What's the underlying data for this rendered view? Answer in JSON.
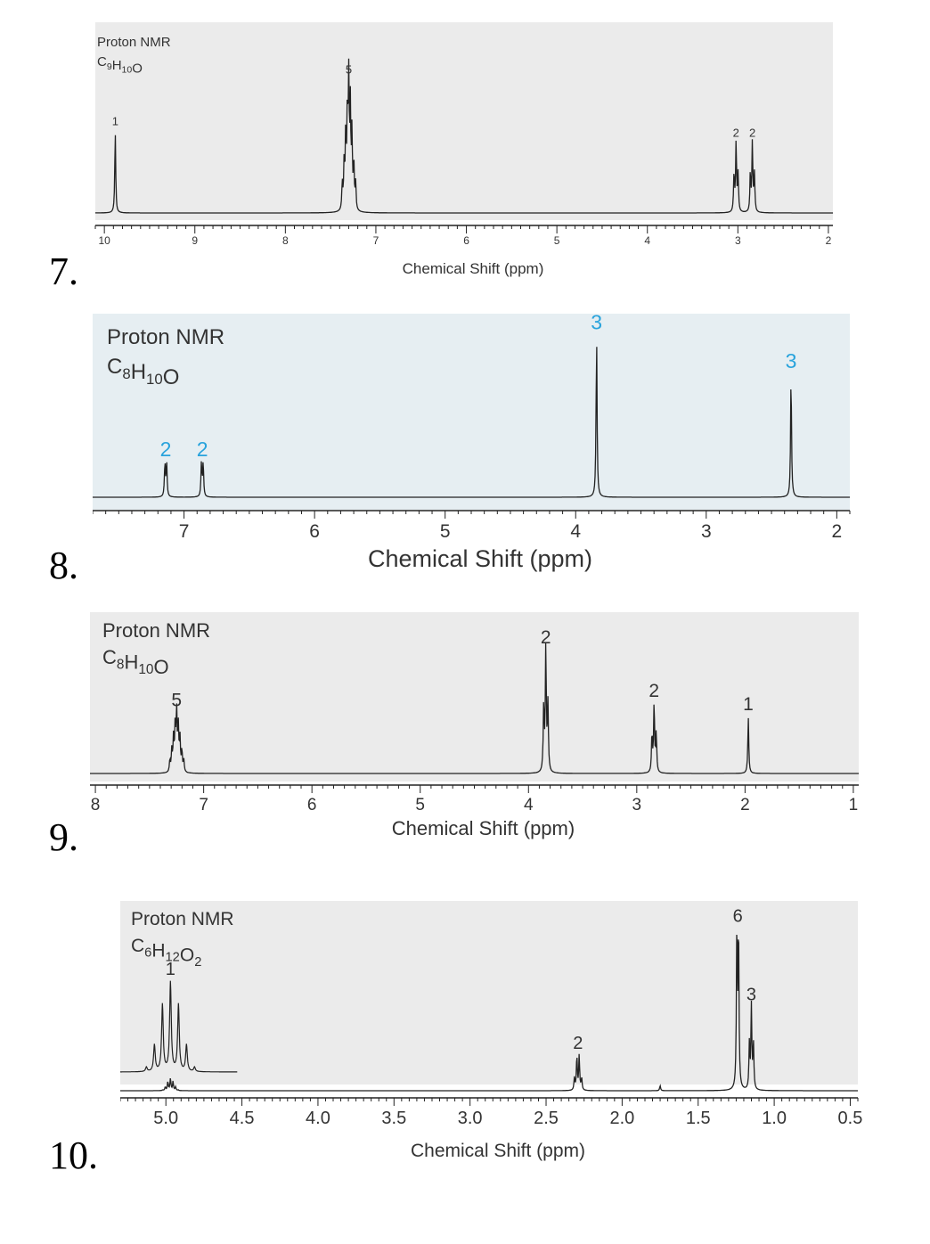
{
  "problems": [
    {
      "number": "7.",
      "chart_data": {
        "type": "line",
        "title": "Proton NMR",
        "formula": [
          {
            "t": "C"
          },
          {
            "t": "9",
            "sub": true
          },
          {
            "t": "H"
          },
          {
            "t": "10",
            "sub": true
          },
          {
            "t": "O"
          }
        ],
        "xlabel": "Chemical Shift (ppm)",
        "ylabel": "",
        "xlim": [
          10.1,
          1.95
        ],
        "ticks": [
          "10",
          "9",
          "8",
          "7",
          "6",
          "5",
          "4",
          "3",
          "2"
        ],
        "integration_color": "#333333",
        "background": "#ebebeb",
        "peaks": [
          {
            "shift": 9.88,
            "integration": "1",
            "multiplicity": "s",
            "height": 0.55
          },
          {
            "shift": 7.3,
            "integration": "5",
            "multiplicity": "m",
            "height": 0.9
          },
          {
            "shift": 3.02,
            "integration": "2",
            "multiplicity": "t",
            "height": 0.47
          },
          {
            "shift": 2.84,
            "integration": "2",
            "multiplicity": "t",
            "height": 0.47
          }
        ]
      }
    },
    {
      "number": "8.",
      "chart_data": {
        "type": "line",
        "title": "Proton NMR",
        "formula": [
          {
            "t": "C"
          },
          {
            "t": "8",
            "sub": true
          },
          {
            "t": "H"
          },
          {
            "t": "10",
            "sub": true
          },
          {
            "t": "O"
          }
        ],
        "xlabel": "Chemical Shift (ppm)",
        "ylabel": "",
        "xlim": [
          7.7,
          1.9
        ],
        "ticks": [
          "7",
          "6",
          "5",
          "4",
          "3",
          "2"
        ],
        "integration_color": "#29a3dc",
        "background": "#e6eef2",
        "peaks": [
          {
            "shift": 7.14,
            "integration": "2",
            "multiplicity": "d",
            "height": 0.2
          },
          {
            "shift": 6.86,
            "integration": "2",
            "multiplicity": "d",
            "height": 0.2
          },
          {
            "shift": 3.84,
            "integration": "3",
            "multiplicity": "s",
            "height": 0.95
          },
          {
            "shift": 2.35,
            "integration": "3",
            "multiplicity": "s",
            "height": 0.72
          }
        ]
      }
    },
    {
      "number": "9.",
      "chart_data": {
        "type": "line",
        "title": "Proton NMR",
        "formula": [
          {
            "t": "C"
          },
          {
            "t": "8",
            "sub": true
          },
          {
            "t": "H"
          },
          {
            "t": "10",
            "sub": true
          },
          {
            "t": "O"
          }
        ],
        "xlabel": "Chemical Shift (ppm)",
        "ylabel": "",
        "xlim": [
          8.05,
          0.95
        ],
        "ticks": [
          "8",
          "7",
          "6",
          "5",
          "4",
          "3",
          "2",
          "1"
        ],
        "integration_color": "#333333",
        "background": "#ebebeb",
        "peaks": [
          {
            "shift": 7.25,
            "integration": "5",
            "multiplicity": "m",
            "height": 0.45
          },
          {
            "shift": 3.84,
            "integration": "2",
            "multiplicity": "t",
            "height": 0.92
          },
          {
            "shift": 2.84,
            "integration": "2",
            "multiplicity": "t",
            "height": 0.52
          },
          {
            "shift": 1.97,
            "integration": "1",
            "multiplicity": "s",
            "height": 0.42
          }
        ]
      }
    },
    {
      "number": "10.",
      "chart_data": {
        "type": "line",
        "title": "Proton NMR",
        "formula": [
          {
            "t": "C"
          },
          {
            "t": "6",
            "sub": true
          },
          {
            "t": "H"
          },
          {
            "t": "12",
            "sub": true
          },
          {
            "t": "O"
          },
          {
            "t": "2",
            "sub": true
          }
        ],
        "xlabel": "Chemical Shift (ppm)",
        "ylabel": "",
        "xlim": [
          5.3,
          0.45
        ],
        "ticks": [
          "5.0",
          "4.5",
          "4.0",
          "3.5",
          "3.0",
          "2.5",
          "2.0",
          "1.5",
          "1.0",
          "0.5"
        ],
        "integration_color": "#333333",
        "background": "#ebebeb",
        "inset": {
          "shift": 4.97,
          "integration": "1",
          "multiplicity": "septet",
          "label_shift": 4.97
        },
        "peaks": [
          {
            "shift": 4.97,
            "integration": "",
            "multiplicity": "septet",
            "height": 0.07
          },
          {
            "shift": 2.29,
            "integration": "2",
            "multiplicity": "q",
            "height": 0.2
          },
          {
            "shift": 1.75,
            "integration": "",
            "multiplicity": "s",
            "height": 0.03
          },
          {
            "shift": 1.24,
            "integration": "6",
            "multiplicity": "d",
            "height": 0.93
          },
          {
            "shift": 1.15,
            "integration": "3",
            "multiplicity": "t",
            "height": 0.48
          }
        ]
      }
    }
  ]
}
